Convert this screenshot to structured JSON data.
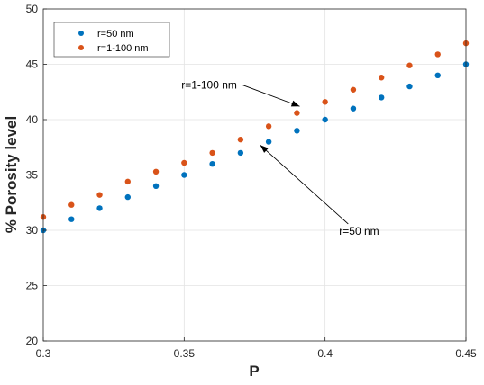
{
  "chart_data": {
    "type": "scatter",
    "title": "",
    "xlabel": "P",
    "ylabel": "% Porosity level",
    "xlim": [
      0.3,
      0.45
    ],
    "ylim": [
      20,
      50
    ],
    "xticks": [
      0.3,
      0.35,
      0.4,
      0.45
    ],
    "xtick_labels": [
      "0.3",
      "0.35",
      "0.4",
      "0.45"
    ],
    "yticks": [
      20,
      25,
      30,
      35,
      40,
      45,
      50
    ],
    "ytick_labels": [
      "20",
      "25",
      "30",
      "35",
      "40",
      "45",
      "50"
    ],
    "grid": true,
    "legend_position": "top-left",
    "series": [
      {
        "name": "r=50 nm",
        "color": "#0072BD",
        "x": [
          0.3,
          0.31,
          0.32,
          0.33,
          0.34,
          0.35,
          0.36,
          0.37,
          0.38,
          0.39,
          0.4,
          0.41,
          0.42,
          0.43,
          0.44,
          0.45
        ],
        "y": [
          30.0,
          31.0,
          32.0,
          33.0,
          34.0,
          35.0,
          36.0,
          37.0,
          38.0,
          39.0,
          40.0,
          41.0,
          42.0,
          43.0,
          44.0,
          45.0
        ]
      },
      {
        "name": "r=1-100 nm",
        "color": "#D95319",
        "x": [
          0.3,
          0.31,
          0.32,
          0.33,
          0.34,
          0.35,
          0.36,
          0.37,
          0.38,
          0.39,
          0.4,
          0.41,
          0.42,
          0.43,
          0.44,
          0.45
        ],
        "y": [
          31.2,
          32.3,
          33.2,
          34.4,
          35.3,
          36.1,
          37.0,
          38.2,
          39.4,
          40.6,
          41.6,
          42.7,
          43.8,
          44.9,
          45.9,
          46.9
        ]
      }
    ],
    "annotations": [
      {
        "text": "r=1-100 nm",
        "x": 0.349,
        "y": 42.8,
        "arrow_to": [
          0.391,
          41.2
        ]
      },
      {
        "text": "r=50 nm",
        "x": 0.405,
        "y": 29.6,
        "arrow_to": [
          0.377,
          37.7
        ]
      }
    ]
  }
}
